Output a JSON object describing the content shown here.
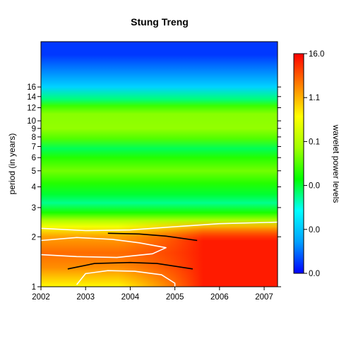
{
  "chart_data": {
    "type": "heatmap",
    "title": "Stung Treng",
    "xlabel": "",
    "ylabel": "period (in years)",
    "x_range": [
      2002,
      2007.3
    ],
    "x_ticks": [
      "2002",
      "2003",
      "2004",
      "2005",
      "2006",
      "2007"
    ],
    "y_scale": "log",
    "y_range": [
      1,
      30
    ],
    "y_ticks": [
      "1",
      "2",
      "3",
      "4",
      "5",
      "6",
      "7",
      "8",
      "9",
      "10",
      "12",
      "14",
      "16"
    ],
    "colorbar": {
      "label": "wavelet power levels",
      "tick_labels": [
        "0.0",
        "0.0",
        "0.0",
        "0.1",
        "1.1",
        "16.0"
      ],
      "colors": [
        "#0000ff",
        "#00a0ff",
        "#00ffff",
        "#00ff00",
        "#a0ff00",
        "#ffff00",
        "#ff8000",
        "#ff0000"
      ]
    },
    "period_bands": [
      {
        "period": 25.0,
        "level": 0.05
      },
      {
        "period": 20.0,
        "level": 0.12
      },
      {
        "period": 16.0,
        "level": 0.22
      },
      {
        "period": 13.5,
        "level": 0.36
      },
      {
        "period": 12.3,
        "level": 0.48
      },
      {
        "period": 11.0,
        "level": 0.55
      },
      {
        "period": 9.0,
        "level": 0.56
      },
      {
        "period": 7.8,
        "level": 0.5
      },
      {
        "period": 6.8,
        "level": 0.38
      },
      {
        "period": 6.0,
        "level": 0.46
      },
      {
        "period": 5.0,
        "level": 0.53
      },
      {
        "period": 4.2,
        "level": 0.46
      },
      {
        "period": 3.6,
        "level": 0.4
      },
      {
        "period": 3.2,
        "level": 0.35
      },
      {
        "period": 2.8,
        "level": 0.45
      },
      {
        "period": 2.5,
        "level": 0.6
      },
      {
        "period": 2.3,
        "level": 0.7
      },
      {
        "period": 2.0,
        "level": 0.82
      },
      {
        "period": 1.6,
        "level": 0.88
      },
      {
        "period": 1.3,
        "level": 0.84
      },
      {
        "period": 1.0,
        "level": 0.72
      }
    ],
    "high_power_region": {
      "x_start": 2005.0,
      "x_end": 2007.3,
      "period_min": 1.0,
      "period_max": 2.3
    },
    "significance_contours": [
      {
        "color": "#ffffff",
        "points": [
          [
            2002.0,
            2.25
          ],
          [
            2003.0,
            2.18
          ],
          [
            2004.0,
            2.2
          ],
          [
            2005.0,
            2.3
          ],
          [
            2006.0,
            2.4
          ],
          [
            2007.3,
            2.45
          ]
        ]
      },
      {
        "color": "#ffffff",
        "points": [
          [
            2002.0,
            1.9
          ],
          [
            2002.8,
            1.98
          ],
          [
            2003.6,
            1.93
          ],
          [
            2004.2,
            1.84
          ],
          [
            2004.8,
            1.72
          ],
          [
            2004.5,
            1.58
          ],
          [
            2003.7,
            1.5
          ],
          [
            2002.8,
            1.52
          ],
          [
            2002.0,
            1.56
          ]
        ]
      },
      {
        "color": "#ffffff",
        "points": [
          [
            2002.8,
            1.03
          ],
          [
            2003.0,
            1.2
          ],
          [
            2003.5,
            1.25
          ],
          [
            2004.1,
            1.24
          ],
          [
            2004.7,
            1.18
          ],
          [
            2005.0,
            1.05
          ],
          [
            2005.0,
            1.0
          ]
        ]
      }
    ],
    "cone_of_influence": [
      {
        "color": "#000000",
        "points": [
          [
            2003.5,
            2.1
          ],
          [
            2004.2,
            2.08
          ],
          [
            2004.8,
            2.02
          ],
          [
            2005.5,
            1.9
          ]
        ]
      },
      {
        "color": "#000000",
        "points": [
          [
            2002.6,
            1.28
          ],
          [
            2003.2,
            1.38
          ],
          [
            2004.0,
            1.4
          ],
          [
            2004.6,
            1.38
          ],
          [
            2005.4,
            1.28
          ]
        ]
      }
    ]
  }
}
